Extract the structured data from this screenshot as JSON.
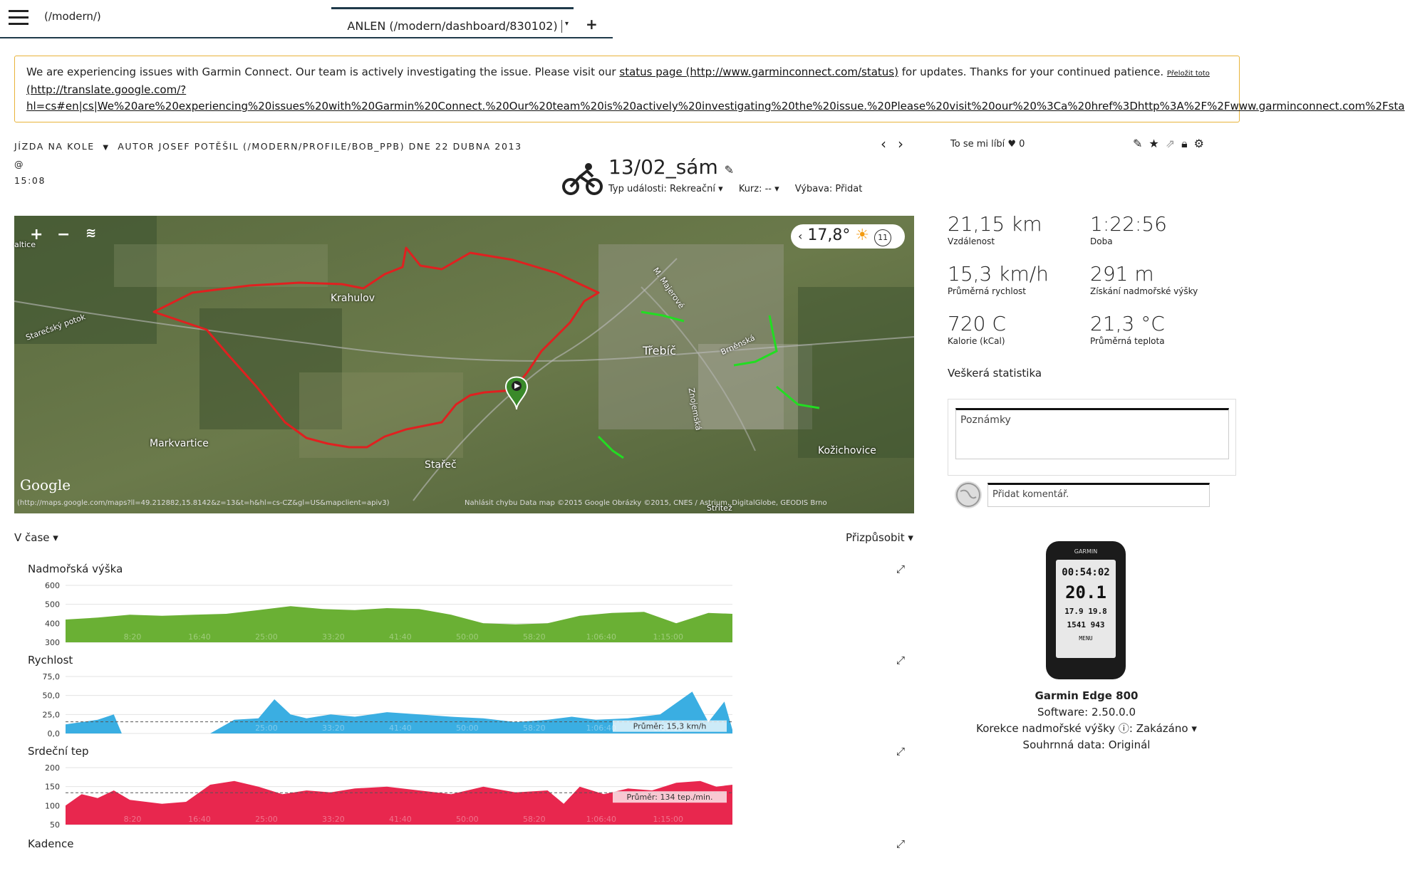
{
  "topbar": {
    "path": "(/modern/)",
    "tab_label": "ANLEN (/modern/dashboard/830102)",
    "tab_dropdown": "▾",
    "add": "+"
  },
  "banner": {
    "text_before": "We are experiencing issues with Garmin Connect. Our team is actively investigating the issue. Please visit our ",
    "link_text": "status page (http://www.garminconnect.com/status)",
    "text_after": " for updates. Thanks for your continued patience. ",
    "translate_label": "Přeložit toto",
    "translate_url_1": "(http://translate.google.com/?",
    "translate_url_2": "hl=cs#en|cs|We%20are%20experiencing%20issues%20with%20Garmin%20Connect.%20Our%20team%20is%20actively%20investigating%20the%20issue.%20Please%20visit%20our%20%3Ca%20href%3Dhttp%3A%2F%2Fwww.garminconnect.com%2Fsta"
  },
  "activity": {
    "type": "Jízda na kole",
    "author_line": "autor Josef Potěšil (/modern/profile/bob_ppb) dne 22 dubna 2013 @",
    "time": "15:08",
    "title": "13/02_sám",
    "event_type": "Typ události: Rekreační ▾",
    "course": "Kurz: -- ▾",
    "gear": "Výbava: Přidat",
    "like_label": "To se mi líbí",
    "like_count": "0"
  },
  "weather": {
    "temp": "17,8°",
    "wind": "11"
  },
  "map": {
    "labels": [
      "Krahulov",
      "Třebíč",
      "Markvartice",
      "Stařeč",
      "Kožichovice",
      "Starečský potok",
      "Brněnská",
      "M. Majerové",
      "Znojemská",
      "altice",
      "Střítež"
    ],
    "google": "Google",
    "url": "(http://maps.google.com/maps?ll=49.212882,15.8142&z=13&t=h&hl=cs-CZ&gl=US&mapclient=apiv3)",
    "copyright": "Nahlásit chybu  Data map ©2015 Google  Obrázky ©2015, CNES / Astrium, DigitalGlobe, GEODIS Brno"
  },
  "stats": [
    {
      "value": "21,15 km",
      "label": "Vzdálenost"
    },
    {
      "value": "1:22:56",
      "label": "Doba"
    },
    {
      "value": "15,3 km/h",
      "label": "Průměrná rychlost"
    },
    {
      "value": "291 m",
      "label": "Získání nadmořské výšky"
    },
    {
      "value": "720 C",
      "label": "Kalorie (kCal)"
    },
    {
      "value": "21,3 °C",
      "label": "Průměrná teplota"
    }
  ],
  "all_stats": "Veškerá statistika",
  "notes_placeholder": "Poznámky",
  "comment_placeholder": "Přidat komentář.",
  "device": {
    "name": "Garmin Edge 800",
    "software": "Software: 2.50.0.0",
    "elev_correction": "Korekce nadmořské výšky ⓘ: Zakázáno ▾",
    "summary": "Souhrnná data: Originál",
    "screen_brand": "GARMIN",
    "screen_time": "00:54:02",
    "screen_speed": "20.1",
    "screen_dist": "17.9",
    "screen_avg": "19.8",
    "screen_elev": "1541",
    "screen_ascent": "943",
    "screen_menu": "MENU"
  },
  "charts_header": {
    "left": "V čase ▾",
    "right": "Přizpůsobit ▾"
  },
  "chart_data": [
    {
      "type": "area",
      "title": "Nadmořská výška",
      "color": "#6ab034",
      "ylim": [
        300,
        600
      ],
      "yticks": [
        "600",
        "500",
        "400",
        "300"
      ],
      "xticks": [
        "8:20",
        "16:40",
        "25:00",
        "33:20",
        "41:40",
        "50:00",
        "58:20",
        "1:06:40",
        "1:15:00"
      ],
      "x_minutes": [
        0,
        4,
        8,
        12,
        16,
        20,
        24,
        28,
        32,
        36,
        40,
        44,
        48,
        52,
        56,
        60,
        64,
        68,
        72,
        76,
        80,
        83
      ],
      "values": [
        420,
        430,
        445,
        440,
        445,
        450,
        470,
        490,
        475,
        470,
        480,
        475,
        445,
        400,
        395,
        400,
        440,
        455,
        460,
        400,
        455,
        450
      ]
    },
    {
      "type": "area",
      "title": "Rychlost",
      "color": "#3aaee2",
      "ylim": [
        0,
        75
      ],
      "yticks": [
        "75,0",
        "50,0",
        "25,0",
        "0,0"
      ],
      "xticks": [
        "8:20",
        "16:40",
        "25:00",
        "33:20",
        "41:40",
        "50:00",
        "58:20",
        "1:06:40",
        "1:15:00"
      ],
      "x_minutes": [
        0,
        2,
        4,
        6,
        7,
        9,
        12,
        15,
        18,
        21,
        24,
        26,
        28,
        30,
        33,
        36,
        40,
        44,
        48,
        52,
        56,
        60,
        63,
        66,
        70,
        74,
        78,
        80,
        82,
        83
      ],
      "values": [
        12,
        15,
        18,
        25,
        0,
        0,
        0,
        0,
        0,
        18,
        20,
        45,
        25,
        20,
        25,
        22,
        28,
        25,
        22,
        20,
        15,
        18,
        22,
        18,
        20,
        25,
        55,
        15,
        42,
        5
      ],
      "average_label": "Průměr: 15,3 km/h",
      "average": 15.3
    },
    {
      "type": "area",
      "title": "Srdeční tep",
      "color": "#e8274e",
      "ylim": [
        50,
        200
      ],
      "yticks": [
        "200",
        "150",
        "100",
        "50"
      ],
      "xticks": [
        "8:20",
        "16:40",
        "25:00",
        "33:20",
        "41:40",
        "50:00",
        "58:20",
        "1:06:40",
        "1:15:00"
      ],
      "x_minutes": [
        0,
        2,
        4,
        6,
        8,
        10,
        12,
        15,
        18,
        21,
        24,
        27,
        30,
        33,
        36,
        40,
        44,
        48,
        52,
        56,
        60,
        62,
        64,
        67,
        70,
        73,
        76,
        79,
        81,
        83
      ],
      "values": [
        100,
        130,
        120,
        140,
        115,
        110,
        105,
        110,
        155,
        165,
        150,
        130,
        140,
        135,
        145,
        150,
        140,
        130,
        150,
        135,
        140,
        105,
        150,
        130,
        145,
        140,
        160,
        165,
        150,
        155
      ],
      "average_label": "Průměr: 134 tep./min.",
      "average": 134
    }
  ],
  "chart4_title": "Kadence"
}
